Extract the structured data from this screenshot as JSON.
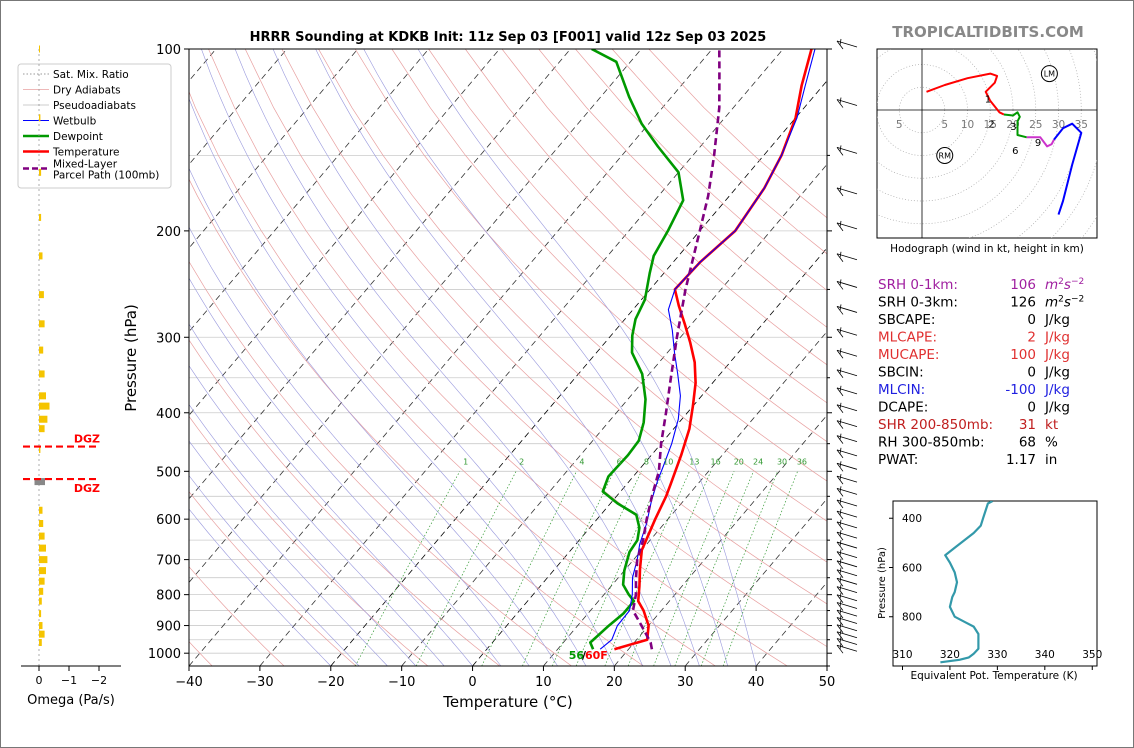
{
  "site": "TROPICALTIDBITS.COM",
  "chart_data": [
    {
      "type": "line",
      "name": "skew-t",
      "title": "HRRR Sounding at KDKB Init: 11z Sep 03 [F001] valid 12z Sep 03 2025",
      "xlabel": "Temperature (°C)",
      "ylabel": "Pressure (hPa)",
      "xlim": [
        -40,
        50
      ],
      "ylim": [
        1050,
        100
      ],
      "y_scale": "log",
      "x_ticks": [
        "−40",
        "−30",
        "−20",
        "−10",
        "0",
        "10",
        "20",
        "30",
        "40",
        "50"
      ],
      "y_ticks": [
        "100",
        "200",
        "300",
        "400",
        "500",
        "600",
        "700",
        "800",
        "900",
        "1000"
      ],
      "legend_position": "upper-left, outside",
      "legend": [
        "Sat. Mix. Ratio",
        "Dry Adiabats",
        "Pseudoadiabats",
        "Wetbulb",
        "Dewpoint",
        "Temperature",
        "Mixed-Layer\nParcel Path (100mb)"
      ],
      "mixing_ratio_labels": [
        "1",
        "2",
        "4",
        "6",
        "8",
        "10",
        "13",
        "16",
        "20",
        "24",
        "30",
        "36"
      ],
      "surface_label_dewpoint": "56",
      "surface_label_temperature": "60F",
      "colors": {
        "temperature": "#ff0000",
        "dewpoint": "#009900",
        "wetbulb": "#0000ff",
        "parcel": "#800080"
      },
      "series": [
        {
          "name": "Temperature",
          "color": "#ff0000",
          "points": [
            [
              18,
              985
            ],
            [
              21.5,
              950
            ],
            [
              20,
              900
            ],
            [
              17.5,
              850
            ],
            [
              15.6,
              820
            ],
            [
              14,
              775
            ],
            [
              12,
              725
            ],
            [
              10,
              675
            ],
            [
              8.2,
              600
            ],
            [
              7,
              550
            ],
            [
              6.2,
              525
            ],
            [
              4.2,
              470
            ],
            [
              2.2,
              425
            ],
            [
              0,
              390
            ],
            [
              -2.4,
              357
            ],
            [
              -5,
              330
            ],
            [
              -8,
              306
            ],
            [
              -11,
              285
            ],
            [
              -14,
              266
            ],
            [
              -16.5,
              250
            ],
            [
              -16.2,
              225
            ],
            [
              -15,
              200
            ],
            [
              -16,
              170
            ],
            [
              -17.5,
              150
            ],
            [
              -20,
              130
            ],
            [
              -23,
              115
            ],
            [
              -26,
              100
            ]
          ]
        },
        {
          "name": "Dewpoint",
          "color": "#009900",
          "points": [
            [
              15,
              985
            ],
            [
              13.8,
              960
            ],
            [
              14.4,
              900
            ],
            [
              15,
              860
            ],
            [
              15,
              820
            ],
            [
              13.5,
              800
            ],
            [
              11.5,
              770
            ],
            [
              10,
              730
            ],
            [
              8.5,
              680
            ],
            [
              8.2,
              650
            ],
            [
              7,
              620
            ],
            [
              5,
              590
            ],
            [
              1,
              565
            ],
            [
              -2.5,
              540
            ],
            [
              -3.5,
              510
            ],
            [
              -3.3,
              470
            ],
            [
              -3.5,
              445
            ],
            [
              -5,
              415
            ],
            [
              -7.5,
              380
            ],
            [
              -11,
              345
            ],
            [
              -15,
              318
            ],
            [
              -17,
              298
            ],
            [
              -18.5,
              280
            ],
            [
              -19.5,
              260
            ],
            [
              -22,
              235
            ],
            [
              -23.5,
              220
            ],
            [
              -24.5,
              200
            ],
            [
              -26,
              178
            ],
            [
              -30,
              160
            ],
            [
              -36,
              145
            ],
            [
              -41,
              133
            ],
            [
              -46,
              120
            ],
            [
              -52,
              105
            ],
            [
              -57,
              100
            ]
          ]
        },
        {
          "name": "Wetbulb",
          "color": "#0000ff",
          "points": [
            [
              16,
              985
            ],
            [
              16.5,
              950
            ],
            [
              15.6,
              900
            ],
            [
              15.5,
              850
            ],
            [
              14,
              800
            ],
            [
              12,
              750
            ],
            [
              10.5,
              700
            ],
            [
              9,
              660
            ],
            [
              7.5,
              610
            ],
            [
              5.5,
              560
            ],
            [
              4,
              520
            ],
            [
              3,
              490
            ],
            [
              1.5,
              450
            ],
            [
              -0.5,
              410
            ],
            [
              -3,
              375
            ],
            [
              -6,
              345
            ],
            [
              -9,
              318
            ],
            [
              -12,
              292
            ],
            [
              -15,
              270
            ],
            [
              -16.5,
              250
            ],
            [
              -16.2,
              225
            ],
            [
              -15,
              200
            ],
            [
              -16,
              170
            ],
            [
              -17.5,
              150
            ],
            [
              -19.8,
              130
            ],
            [
              -22.5,
              115
            ],
            [
              -25.5,
              100
            ]
          ]
        },
        {
          "name": "Mixed-Layer Parcel Path (100mb)",
          "color": "#800080",
          "points": [
            [
              23.3,
              985
            ],
            [
              22.3,
              960
            ],
            [
              19,
              900
            ],
            [
              16,
              850
            ],
            [
              14.5,
              800
            ],
            [
              12.5,
              750
            ],
            [
              10.5,
              700
            ],
            [
              9,
              650
            ],
            [
              7,
              600
            ],
            [
              5,
              550
            ],
            [
              3,
              500
            ],
            [
              0,
              450
            ],
            [
              -3,
              400
            ],
            [
              -6.5,
              350
            ],
            [
              -10.5,
              300
            ],
            [
              -15,
              250
            ],
            [
              -20,
              200
            ],
            [
              -23,
              175
            ],
            [
              -27,
              150
            ],
            [
              -32,
              125
            ],
            [
              -36,
              110
            ],
            [
              -39,
              100
            ]
          ]
        }
      ]
    },
    {
      "type": "line",
      "name": "omega",
      "xlabel": "Omega (Pa/s)",
      "x_ticks": [
        "0",
        "−1",
        "−2"
      ],
      "dgz_label": "DGZ",
      "dgz_pressures": [
        455,
        515
      ],
      "bars": [
        [
          100,
          0.01
        ],
        [
          130,
          0.02
        ],
        [
          160,
          0.03
        ],
        [
          190,
          0.03
        ],
        [
          220,
          0.05
        ],
        [
          255,
          0.07
        ],
        [
          285,
          0.08
        ],
        [
          315,
          0.06
        ],
        [
          345,
          0.08
        ],
        [
          375,
          0.1
        ],
        [
          390,
          0.15
        ],
        [
          410,
          0.12
        ],
        [
          425,
          0.08
        ],
        [
          460,
          0.02
        ],
        [
          520,
          -0.15
        ],
        [
          580,
          0.05
        ],
        [
          610,
          0.06
        ],
        [
          640,
          0.08
        ],
        [
          670,
          0.1
        ],
        [
          700,
          0.12
        ],
        [
          730,
          0.1
        ],
        [
          760,
          0.08
        ],
        [
          790,
          0.06
        ],
        [
          820,
          0.04
        ],
        [
          860,
          0.03
        ],
        [
          900,
          0.05
        ],
        [
          930,
          0.08
        ],
        [
          960,
          0.04
        ]
      ]
    },
    {
      "type": "line",
      "name": "hodograph",
      "xlabel": "Hodograph (wind in kt, height in km)",
      "x_ticks": [
        "5",
        "5",
        "10",
        "15",
        "20",
        "25",
        "30",
        "35"
      ],
      "markers": [
        "LM",
        "RM"
      ],
      "height_labels": [
        "1",
        "2",
        "3",
        "6",
        "9"
      ],
      "segments": [
        {
          "color": "#ff0000",
          "points": [
            [
              1,
              4
            ],
            [
              5,
              5.5
            ],
            [
              10,
              7
            ],
            [
              15,
              8
            ],
            [
              16.5,
              7.5
            ],
            [
              16,
              6
            ],
            [
              14,
              4
            ],
            [
              15,
              2
            ],
            [
              17,
              -0.5
            ],
            [
              18,
              -1
            ]
          ]
        },
        {
          "color": "#009900",
          "points": [
            [
              18,
              -1
            ],
            [
              20,
              -1.2
            ],
            [
              21,
              -0.5
            ],
            [
              21.5,
              -1.5
            ],
            [
              21,
              -2.5
            ],
            [
              21,
              -5.5
            ],
            [
              23,
              -6
            ]
          ]
        },
        {
          "color": "#cc33cc",
          "points": [
            [
              23,
              -6
            ],
            [
              26,
              -6
            ],
            [
              27.5,
              -8
            ],
            [
              28.5,
              -7.5
            ],
            [
              29,
              -6.5
            ]
          ]
        },
        {
          "color": "#0000ff",
          "points": [
            [
              29,
              -6.5
            ],
            [
              31,
              -4
            ],
            [
              33,
              -3
            ],
            [
              35,
              -5
            ],
            [
              33,
              -12
            ],
            [
              31,
              -20
            ],
            [
              30,
              -23
            ]
          ]
        }
      ],
      "lm_marker_uv": [
        28,
        8
      ],
      "rm_marker_uv": [
        5,
        -10
      ]
    },
    {
      "type": "line",
      "name": "theta-e",
      "xlabel": "Equivalent Pot. Temperature (K)",
      "ylabel": "Pressure (hPa)",
      "xlim": [
        308,
        351
      ],
      "ylim": [
        1000,
        330
      ],
      "x_ticks": [
        "310",
        "320",
        "330",
        "340",
        "350"
      ],
      "y_ticks": [
        "400",
        "600",
        "800"
      ],
      "color": "#3399aa",
      "points": [
        [
          318,
          985
        ],
        [
          322,
          975
        ],
        [
          324,
          965
        ],
        [
          325,
          950
        ],
        [
          326,
          930
        ],
        [
          326,
          870
        ],
        [
          325,
          840
        ],
        [
          323,
          820
        ],
        [
          321,
          800
        ],
        [
          320,
          760
        ],
        [
          320.5,
          720
        ],
        [
          321,
          700
        ],
        [
          321.5,
          660
        ],
        [
          321,
          620
        ],
        [
          320,
          580
        ],
        [
          319,
          550
        ],
        [
          321,
          520
        ],
        [
          323,
          490
        ],
        [
          325,
          460
        ],
        [
          326.5,
          430
        ],
        [
          327,
          400
        ],
        [
          327.5,
          370
        ],
        [
          328,
          340
        ],
        [
          329,
          330
        ]
      ]
    }
  ],
  "indices": [
    {
      "label": "SRH 0-1km:",
      "value": "106",
      "unit": "m2s-2",
      "color": "#a020a0"
    },
    {
      "label": "SRH 0-3km:",
      "value": "126",
      "unit": "m2s-2",
      "color": "#000000"
    },
    {
      "label": "SBCAPE:",
      "value": "0",
      "unit": "J/kg",
      "color": "#000000"
    },
    {
      "label": "MLCAPE:",
      "value": "2",
      "unit": "J/kg",
      "color": "#e03030"
    },
    {
      "label": "MUCAPE:",
      "value": "100",
      "unit": "J/kg",
      "color": "#e03030"
    },
    {
      "label": "SBCIN:",
      "value": "0",
      "unit": "J/kg",
      "color": "#000000"
    },
    {
      "label": "MLCIN:",
      "value": "-100",
      "unit": "J/kg",
      "color": "#2020e0"
    },
    {
      "label": "DCAPE:",
      "value": "0",
      "unit": "J/kg",
      "color": "#000000"
    },
    {
      "label": "SHR 200-850mb:",
      "value": "31",
      "unit": "kt",
      "color": "#c02020"
    },
    {
      "label": "RH 300-850mb:",
      "value": "68",
      "unit": "%",
      "color": "#000000"
    },
    {
      "label": "PWAT:",
      "value": "1.17",
      "unit": "in",
      "color": "#000000"
    }
  ]
}
